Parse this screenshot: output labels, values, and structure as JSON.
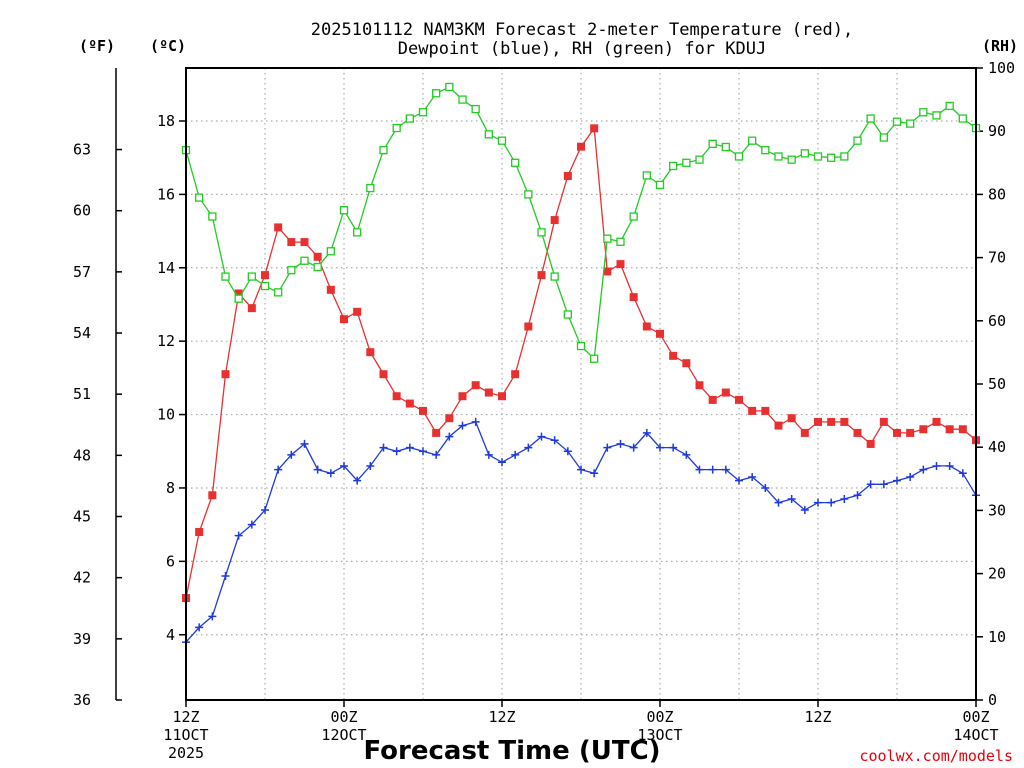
{
  "chart_data": {
    "type": "line",
    "title_line1": "2025101112 NAM3KM Forecast 2-meter Temperature (red),",
    "title_line2": "Dewpoint (blue), RH (green) for KDUJ",
    "unit_f": "(ºF)",
    "unit_c": "(ºC)",
    "unit_rh": "(RH)",
    "xlabel": "Forecast Time (UTC)",
    "credit": "coolwx.com/models",
    "x_range_hours": [
      0,
      60
    ],
    "y_left_celsius_range": [
      2.222,
      19.444
    ],
    "y_right_rh_range": [
      0,
      100
    ],
    "fahrenheit_ticks": [
      "36",
      "39",
      "42",
      "45",
      "48",
      "51",
      "54",
      "57",
      "60",
      "63"
    ],
    "celsius_ticks": [
      "4",
      "6",
      "8",
      "10",
      "12",
      "14",
      "16",
      "18"
    ],
    "rh_ticks": [
      "0",
      "10",
      "20",
      "30",
      "40",
      "50",
      "60",
      "70",
      "80",
      "90",
      "100"
    ],
    "x_ticks": [
      {
        "hour": 0,
        "line1": "12Z",
        "line2": "11OCT",
        "line3": "2025"
      },
      {
        "hour": 12,
        "line1": "00Z",
        "line2": "12OCT",
        "line3": ""
      },
      {
        "hour": 24,
        "line1": "12Z",
        "line2": "",
        "line3": ""
      },
      {
        "hour": 36,
        "line1": "00Z",
        "line2": "13OCT",
        "line3": ""
      },
      {
        "hour": 48,
        "line1": "12Z",
        "line2": "",
        "line3": ""
      },
      {
        "hour": 60,
        "line1": "00Z",
        "line2": "14OCT",
        "line3": ""
      }
    ],
    "series": [
      {
        "name": "Temperature",
        "units": "C",
        "color": "#e83030",
        "marker": "filled-square",
        "x": [
          0,
          1,
          2,
          3,
          4,
          5,
          6,
          7,
          8,
          9,
          10,
          11,
          12,
          13,
          14,
          15,
          16,
          17,
          18,
          19,
          20,
          21,
          22,
          23,
          24,
          25,
          26,
          27,
          28,
          29,
          30,
          31,
          32,
          33,
          34,
          35,
          36,
          37,
          38,
          39,
          40,
          41,
          42,
          43,
          44,
          45,
          46,
          47,
          48,
          49,
          50,
          51,
          52,
          53,
          54,
          55,
          56,
          57,
          58,
          59,
          60
        ],
        "values": [
          5.0,
          6.8,
          7.8,
          11.1,
          13.3,
          12.9,
          13.8,
          15.1,
          14.7,
          14.7,
          14.3,
          13.4,
          12.6,
          12.8,
          11.7,
          11.1,
          10.5,
          10.3,
          10.1,
          9.5,
          9.9,
          10.5,
          10.8,
          10.6,
          10.5,
          11.1,
          12.4,
          13.8,
          15.3,
          16.5,
          17.3,
          17.8,
          13.9,
          14.1,
          13.2,
          12.4,
          12.2,
          11.6,
          11.4,
          10.8,
          10.4,
          10.6,
          10.4,
          10.1,
          10.1,
          9.7,
          9.9,
          9.5,
          9.8,
          9.8,
          9.8,
          9.5,
          9.2,
          9.8,
          9.5,
          9.5,
          9.6,
          9.8,
          9.6,
          9.6,
          9.3
        ]
      },
      {
        "name": "Dewpoint",
        "units": "C",
        "color": "#1e3adc",
        "marker": "plus",
        "x": [
          0,
          1,
          2,
          3,
          4,
          5,
          6,
          7,
          8,
          9,
          10,
          11,
          12,
          13,
          14,
          15,
          16,
          17,
          18,
          19,
          20,
          21,
          22,
          23,
          24,
          25,
          26,
          27,
          28,
          29,
          30,
          31,
          32,
          33,
          34,
          35,
          36,
          37,
          38,
          39,
          40,
          41,
          42,
          43,
          44,
          45,
          46,
          47,
          48,
          49,
          50,
          51,
          52,
          53,
          54,
          55,
          56,
          57,
          58,
          59,
          60
        ],
        "values": [
          3.8,
          4.2,
          4.5,
          5.6,
          6.7,
          7.0,
          7.4,
          8.5,
          8.9,
          9.2,
          8.5,
          8.4,
          8.6,
          8.2,
          8.6,
          9.1,
          9.0,
          9.1,
          9.0,
          8.9,
          9.4,
          9.7,
          9.8,
          8.9,
          8.7,
          8.9,
          9.1,
          9.4,
          9.3,
          9.0,
          8.5,
          8.4,
          9.1,
          9.2,
          9.1,
          9.5,
          9.1,
          9.1,
          8.9,
          8.5,
          8.5,
          8.5,
          8.2,
          8.3,
          8.0,
          7.6,
          7.7,
          7.4,
          7.6,
          7.6,
          7.7,
          7.8,
          8.1,
          8.1,
          8.2,
          8.3,
          8.5,
          8.6,
          8.6,
          8.4,
          7.8
        ]
      },
      {
        "name": "RH",
        "units": "%",
        "color": "#22cc22",
        "marker": "open-square",
        "x": [
          0,
          1,
          2,
          3,
          4,
          5,
          6,
          7,
          8,
          9,
          10,
          11,
          12,
          13,
          14,
          15,
          16,
          17,
          18,
          19,
          20,
          21,
          22,
          23,
          24,
          25,
          26,
          27,
          28,
          29,
          30,
          31,
          32,
          33,
          34,
          35,
          36,
          37,
          38,
          39,
          40,
          41,
          42,
          43,
          44,
          45,
          46,
          47,
          48,
          49,
          50,
          51,
          52,
          53,
          54,
          55,
          56,
          57,
          58,
          59,
          60
        ],
        "values": [
          87,
          79.5,
          76.5,
          67,
          63.5,
          67,
          65.5,
          64.5,
          68,
          69.5,
          68.5,
          71,
          77.5,
          74,
          81,
          87,
          90.5,
          92,
          93,
          96,
          97,
          95,
          93.5,
          89.5,
          88.5,
          85,
          80,
          74,
          67,
          61,
          56,
          54,
          73,
          72.5,
          76.5,
          83,
          81.5,
          84.5,
          85,
          85.5,
          88,
          87.5,
          86,
          88.5,
          87,
          86,
          85.5,
          86.5,
          86,
          85.8,
          86,
          88.5,
          92,
          89,
          91.5,
          91.2,
          93,
          92.5,
          94,
          92,
          90.5
        ]
      }
    ]
  }
}
